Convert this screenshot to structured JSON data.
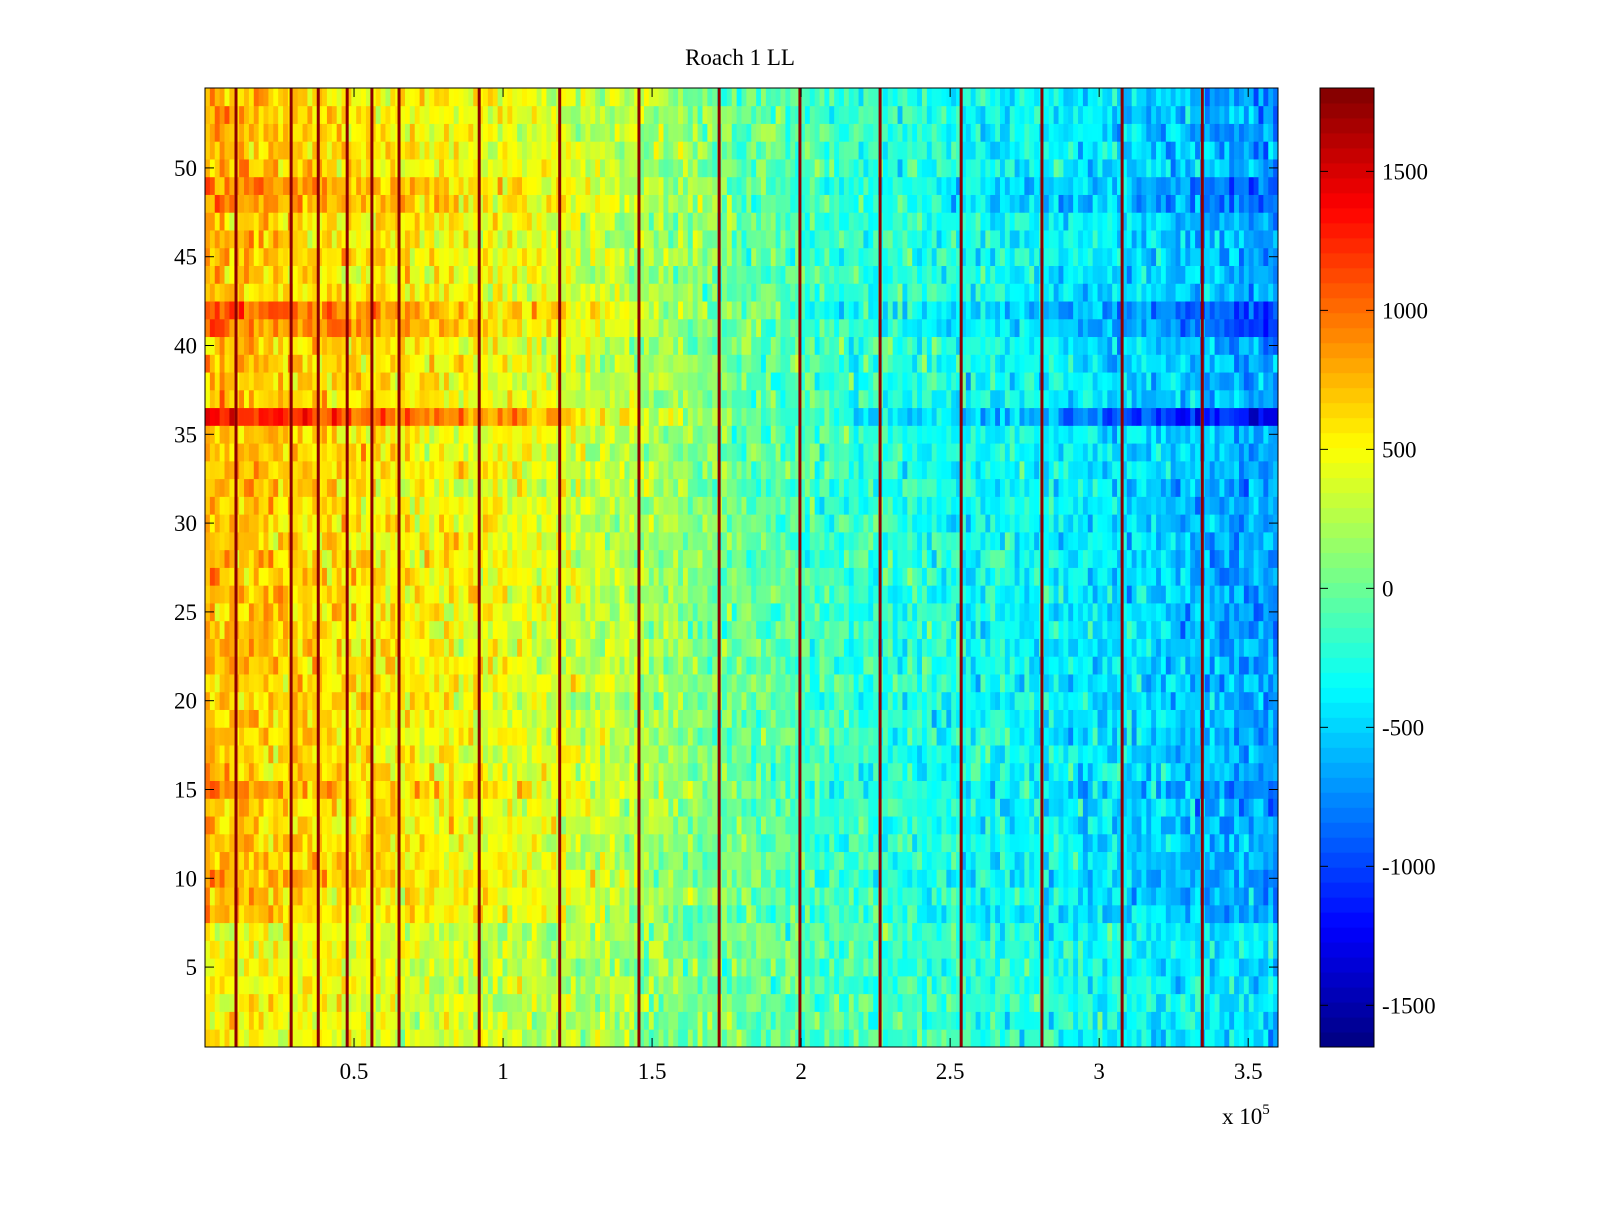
{
  "chart_data": {
    "type": "heatmap",
    "title": "Roach 1 LL",
    "xlabel": "",
    "ylabel": "",
    "x_exponent_label": "x 10",
    "x_exponent": "5",
    "xlim": [
      0,
      3.6
    ],
    "ylim": [
      0.5,
      54.5
    ],
    "rows": 54,
    "x_ticks": [
      0.5,
      1,
      1.5,
      2,
      2.5,
      3,
      3.5
    ],
    "x_tick_labels": [
      "0.5",
      "1",
      "1.5",
      "2",
      "2.5",
      "3",
      "3.5"
    ],
    "y_ticks": [
      5,
      10,
      15,
      20,
      25,
      30,
      35,
      40,
      45,
      50
    ],
    "y_tick_labels": [
      "5",
      "10",
      "15",
      "20",
      "25",
      "30",
      "35",
      "40",
      "45",
      "50"
    ],
    "colormap": "jet",
    "clim": [
      -1650,
      1800
    ],
    "colorbar_ticks": [
      1500,
      1000,
      500,
      0,
      -500,
      -1000,
      -1500
    ],
    "colorbar_tick_labels": [
      "1500",
      "1000",
      "500",
      "0",
      "-500",
      "-1000",
      "-1500"
    ],
    "column_band_x": [
      0.0,
      0.3,
      0.6,
      0.9,
      1.2,
      1.5,
      1.8,
      2.1,
      2.4,
      2.7,
      3.0,
      3.3,
      3.6
    ],
    "column_band_means": [
      750,
      650,
      560,
      480,
      380,
      200,
      0,
      -150,
      -250,
      -330,
      -420,
      -550,
      -700
    ],
    "special_rows": {
      "36": 1.9,
      "42": 1.5,
      "41": 1.4,
      "48": 1.3,
      "49": 1.3,
      "15": 1.2,
      "10": 1.1
    },
    "low_rows_gain": 0.7,
    "noise_std": 260,
    "stripe_x": [
      0.104,
      0.289,
      0.38,
      0.477,
      0.56,
      0.651,
      0.92,
      1.19,
      1.456,
      1.725,
      1.996,
      2.265,
      2.537,
      2.808,
      3.077,
      3.346
    ],
    "stripe_value": 1750,
    "grid": false,
    "legend": "colorbar-right"
  }
}
